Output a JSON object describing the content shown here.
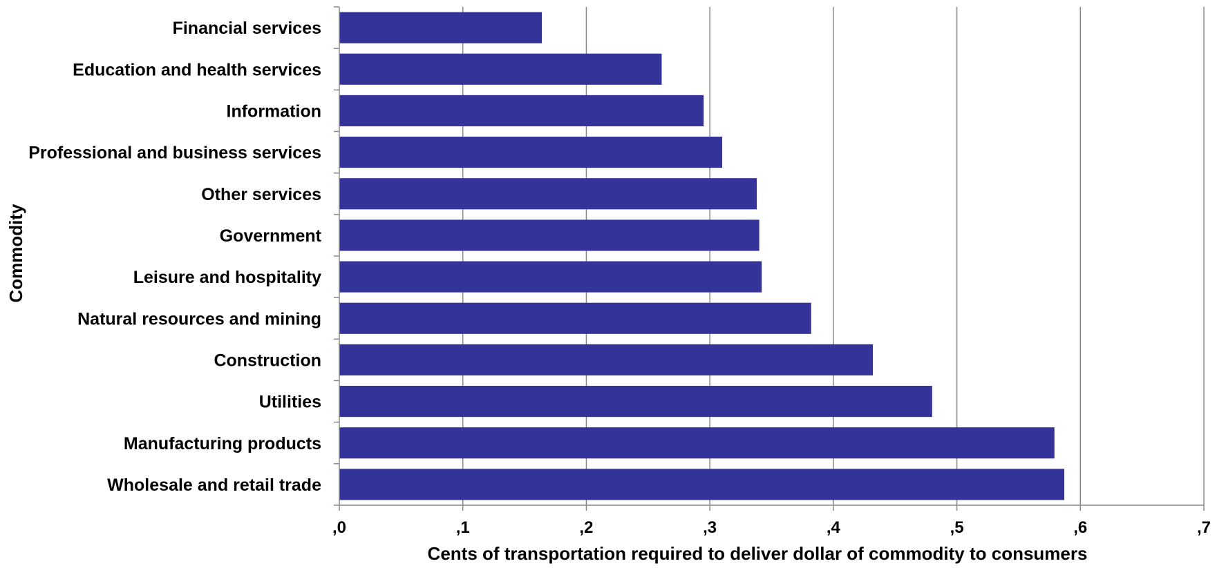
{
  "chart_data": {
    "type": "bar",
    "orientation": "horizontal",
    "categories": [
      "Financial services",
      "Education and health services",
      "Information",
      "Professional and business services",
      "Other services",
      "Government",
      "Leisure and hospitality",
      "Natural resources and mining",
      "Construction",
      "Utilities",
      "Manufacturing products",
      "Wholesale and retail trade"
    ],
    "values": [
      0.164,
      0.261,
      0.295,
      0.31,
      0.338,
      0.34,
      0.342,
      0.382,
      0.432,
      0.48,
      0.579,
      0.587
    ],
    "xlabel": "Cents of transportation required to deliver dollar of commodity to consumers",
    "ylabel": "Commodity",
    "xlim": [
      0,
      0.7
    ],
    "xticks": [
      ",0",
      ",1",
      ",2",
      ",3",
      ",4",
      ",5",
      ",6",
      ",7"
    ],
    "grid": "vertical",
    "legend": "none",
    "bar_color": "#333399"
  }
}
